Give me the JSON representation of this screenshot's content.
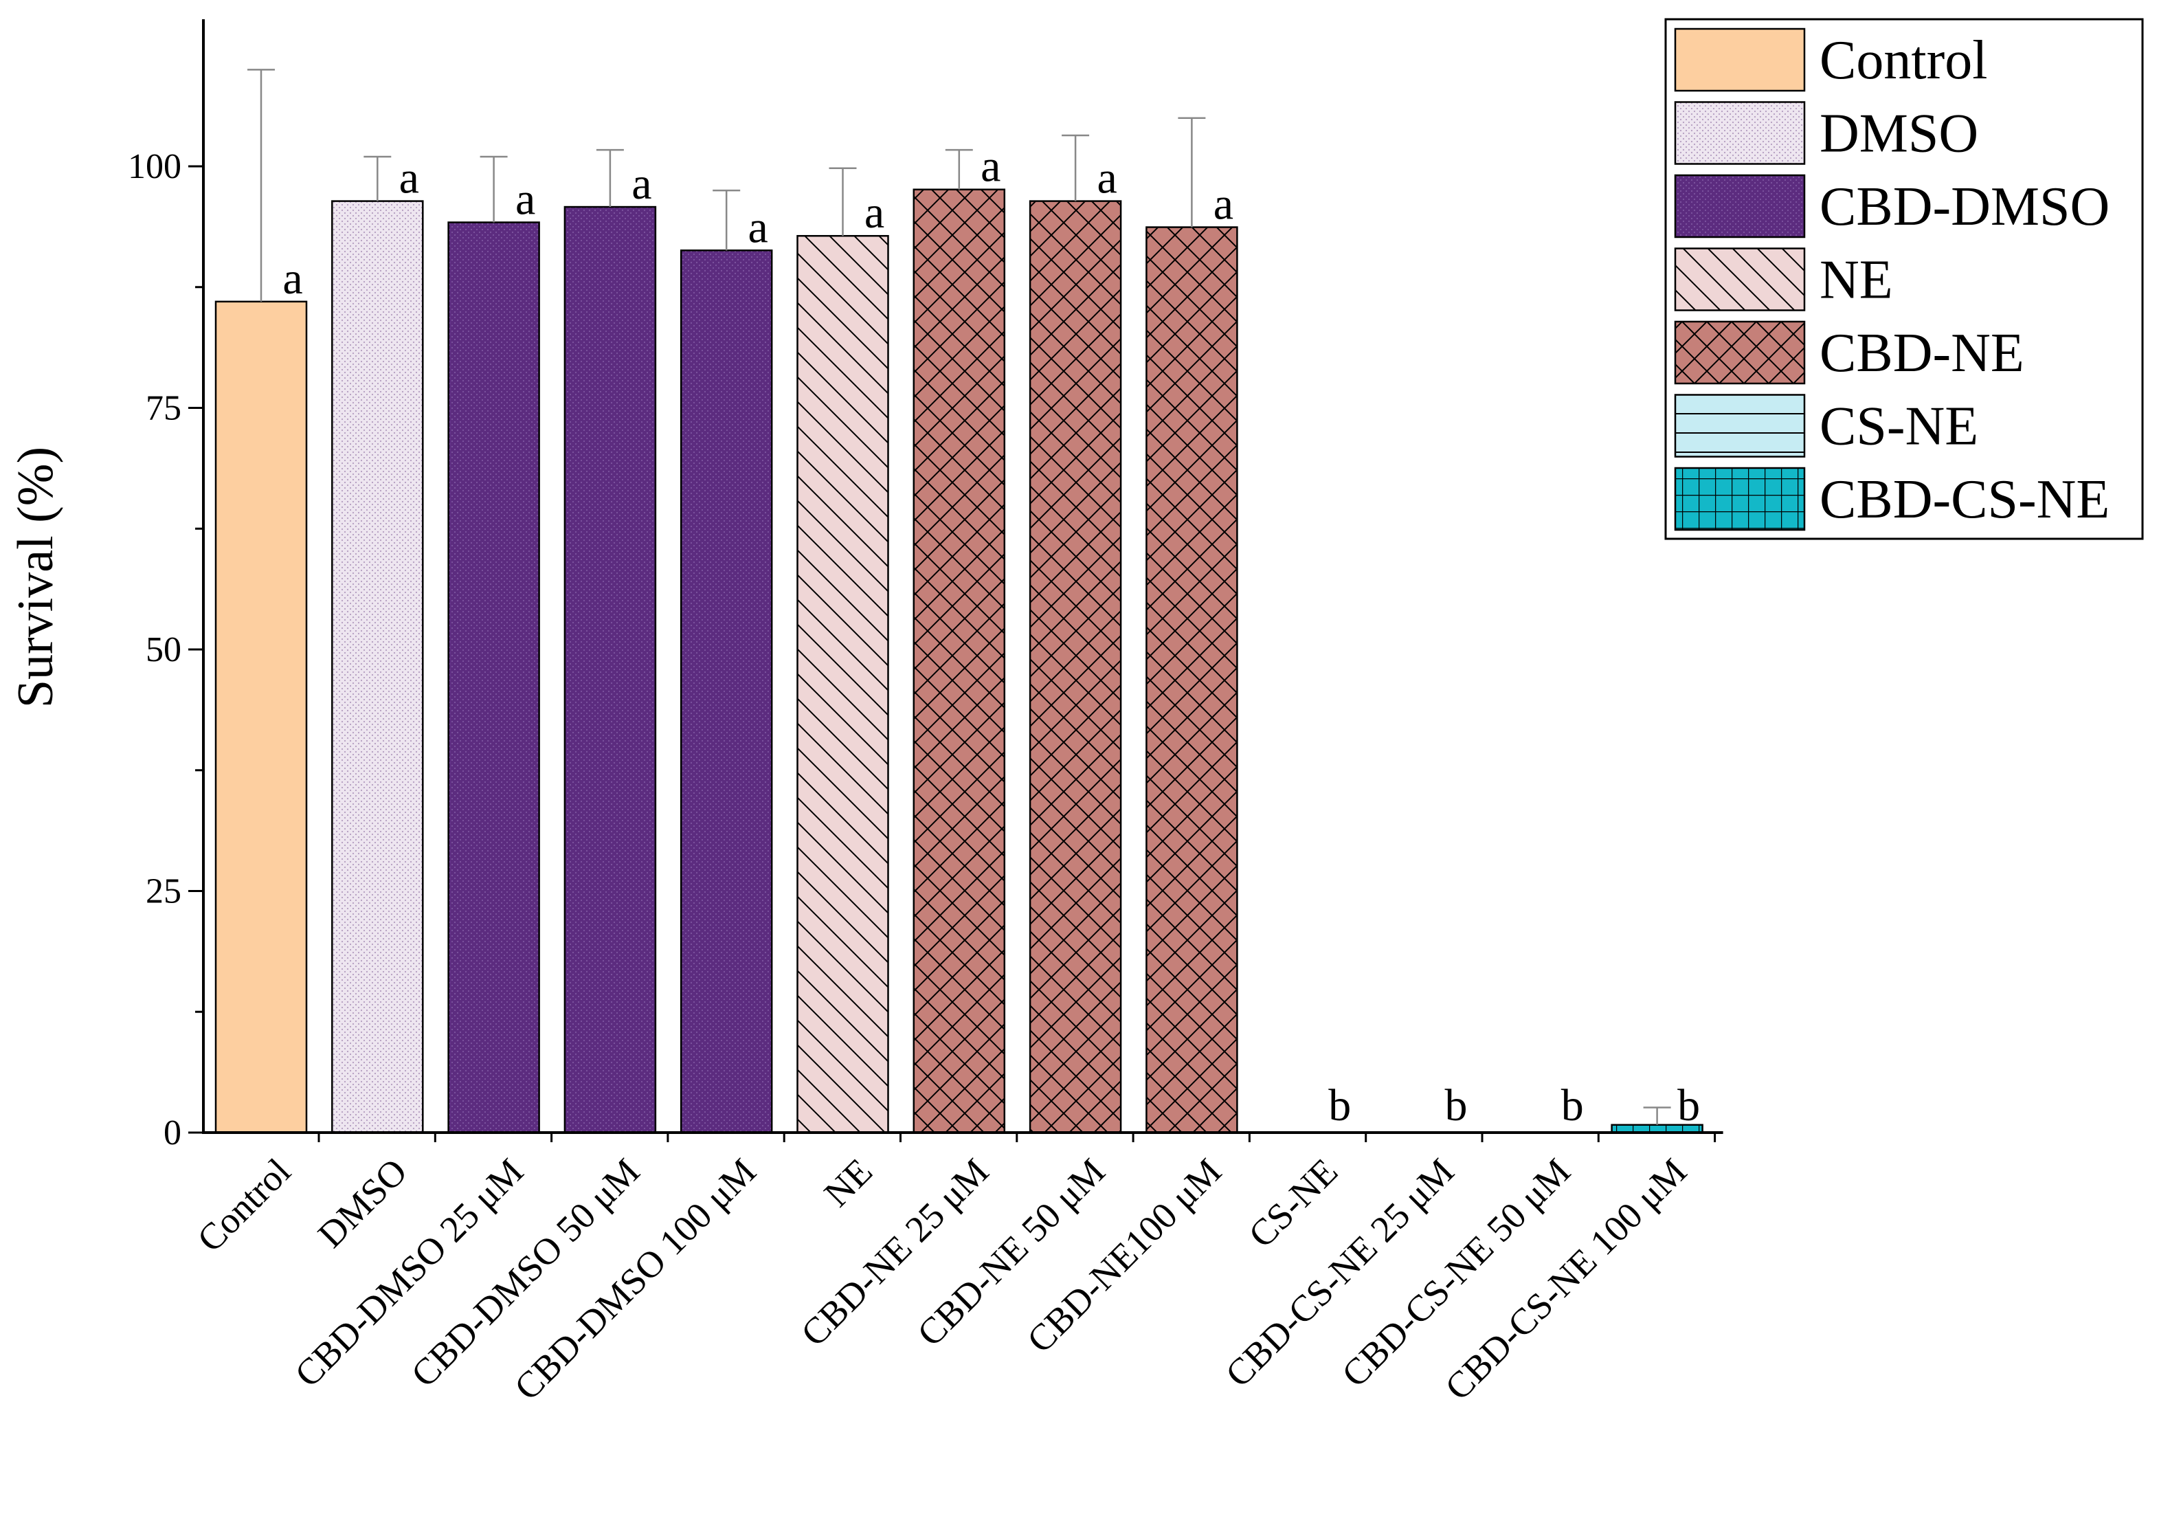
{
  "chart_data": {
    "type": "bar",
    "title": "",
    "xlabel": "",
    "ylabel": "Survival (%)",
    "ylim": [
      0,
      115
    ],
    "yticks": [
      0,
      25,
      50,
      75,
      100
    ],
    "grid": false,
    "legend_position": "top-right",
    "categories": [
      "Control",
      "DMSO",
      "CBD-DMSO 25 μM",
      "CBD-DMSO 50 μM",
      "CBD-DMSO 100 μM",
      "NE",
      "CBD-NE 25 μM",
      "CBD-NE 50 μM",
      "CBD-NE100 μM",
      "CS-NE",
      "CBD-CS-NE 25 μM",
      "CBD-CS-NE 50 μM",
      "CBD-CS-NE 100 μM"
    ],
    "values": [
      86,
      96.4,
      94.2,
      95.8,
      91.3,
      92.8,
      97.6,
      96.4,
      93.7,
      0,
      0,
      0,
      0.8
    ],
    "error_upper": [
      110,
      101,
      101,
      101.7,
      97.5,
      99.8,
      101.7,
      103.2,
      105
    ],
    "significance": [
      "a",
      "a",
      "a",
      "a",
      "a",
      "a",
      "a",
      "a",
      "a",
      "b",
      "b",
      "b",
      "b"
    ],
    "bar_group": [
      "Control",
      "DMSO",
      "CBD-DMSO",
      "CBD-DMSO",
      "CBD-DMSO",
      "NE",
      "CBD-NE",
      "CBD-NE",
      "CBD-NE",
      "CS-NE",
      "CBD-CS-NE",
      "CBD-CS-NE",
      "CBD-CS-NE"
    ],
    "error_upper_last": 2.6,
    "legend": [
      {
        "name": "Control",
        "pattern": "solid",
        "color": "#fdcfa0"
      },
      {
        "name": "DMSO",
        "pattern": "dots",
        "color": "#ede4ef"
      },
      {
        "name": "CBD-DMSO",
        "pattern": "dots",
        "color": "#5b2b7e"
      },
      {
        "name": "NE",
        "pattern": "diag",
        "color": "#eed4d4"
      },
      {
        "name": "CBD-NE",
        "pattern": "cross",
        "color": "#c68079"
      },
      {
        "name": "CS-NE",
        "pattern": "hlines",
        "color": "#c4ecf3"
      },
      {
        "name": "CBD-CS-NE",
        "pattern": "grid",
        "color": "#12b8c8"
      }
    ]
  }
}
